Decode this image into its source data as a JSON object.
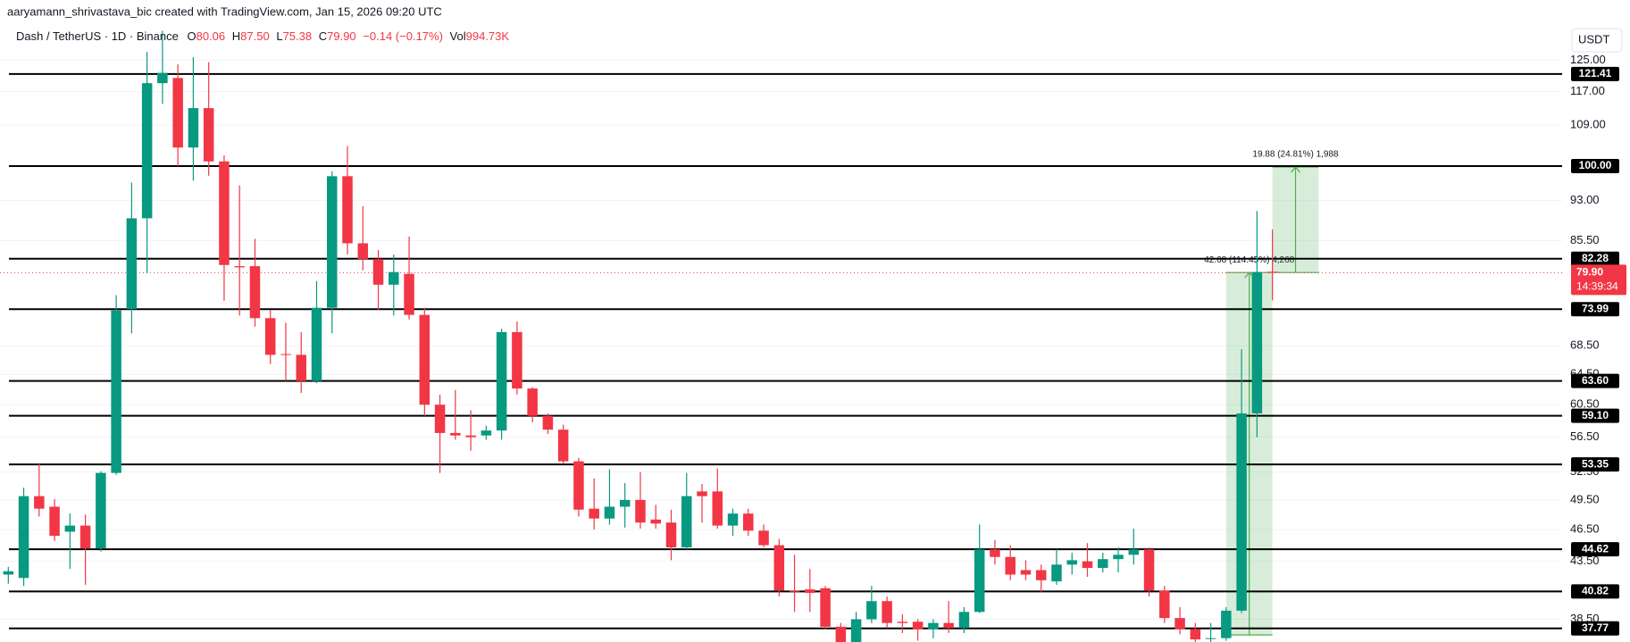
{
  "header": {
    "credit": "aaryamann_shrivastava_bic created with TradingView.com, Jan 15, 2026 09:20 UTC",
    "symbol": "Dash / TetherUS · 1D · Binance",
    "ohlc": [
      {
        "key": "O",
        "value": "80.06"
      },
      {
        "key": "H",
        "value": "87.50"
      },
      {
        "key": "L",
        "value": "75.38"
      },
      {
        "key": "C",
        "value": "79.90"
      }
    ],
    "change": "−0.14 (−0.17%)",
    "volume_key": "Vol",
    "volume": "994.73K",
    "currency": "USDT"
  },
  "chart_data": {
    "type": "candlestick",
    "log": true,
    "grid": true,
    "up_color": "#089981",
    "down_color": "#f23645",
    "ylim": [
      36.7,
      141.9
    ],
    "yticks": [
      {
        "value": 125,
        "label": "125.00"
      },
      {
        "value": 117,
        "label": "117.00"
      },
      {
        "value": 109,
        "label": "109.00"
      },
      {
        "value": 93,
        "label": "93.00"
      },
      {
        "value": 85.5,
        "label": "85.50"
      },
      {
        "value": 68.5,
        "label": "68.50"
      },
      {
        "value": 64.5,
        "label": "64.50"
      },
      {
        "value": 60.5,
        "label": "60.50"
      },
      {
        "value": 56.5,
        "label": "56.50"
      },
      {
        "value": 52.5,
        "label": "52.50"
      },
      {
        "value": 49.5,
        "label": "49.50"
      },
      {
        "value": 46.5,
        "label": "46.50"
      },
      {
        "value": 43.5,
        "label": "43.50"
      },
      {
        "value": 38.5,
        "label": "38.50"
      }
    ],
    "open": [
      42.3,
      42.0,
      49.9,
      48.8,
      46.3,
      46.9,
      44.7,
      52.4,
      74.0,
      89.6,
      119.1,
      120.4,
      104,
      113,
      101,
      81,
      81,
      72.6,
      67.3,
      67.2,
      63.6,
      74.2,
      97.9,
      85.0,
      82.2,
      77.9,
      79.7,
      73.1,
      60.5,
      57,
      56.7,
      56.7,
      57.3,
      70.5,
      62.6,
      59.1,
      57.4,
      53.7,
      48.6,
      47.6,
      48.8,
      49.5,
      47.5,
      47.2,
      44.8,
      50.4,
      50.4,
      46.9,
      48.1,
      46.4,
      45.0,
      40.9,
      41.0,
      41.1,
      37.9,
      36.6,
      38.5,
      40.0,
      38.3,
      38.3,
      37.7,
      38.2,
      37.8,
      39.1,
      44.6,
      43.9,
      42.7,
      42.7,
      41.7,
      43.2,
      43.5,
      42.9,
      43.7,
      44.1,
      44.6,
      40.9,
      38.6,
      37.7,
      37.0,
      37.0,
      39.2,
      59.4,
      80.06
    ],
    "high": [
      43,
      50.8,
      53.5,
      49.6,
      48.1,
      48.0,
      52.6,
      76.2,
      96.6,
      127.2,
      133,
      123.9,
      125.8,
      124.5,
      102.3,
      96,
      85.8,
      73.8,
      71.9,
      70.5,
      78.5,
      98.9,
      104.3,
      91.9,
      83.8,
      83,
      86.2,
      74.2,
      61.8,
      62.4,
      59.8,
      57.9,
      71.0,
      72.1,
      62.8,
      59.4,
      58,
      54.1,
      51.8,
      52.8,
      51.3,
      52.5,
      49.0,
      48.5,
      52.4,
      51.2,
      52.9,
      48.6,
      48.6,
      47.0,
      45.6,
      44.1,
      42.8,
      41.3,
      38.2,
      39.1,
      41.3,
      40.4,
      38.9,
      38.5,
      38.5,
      40.0,
      39.5,
      47.0,
      45.5,
      45.0,
      43.6,
      43.2,
      44.6,
      44.3,
      45.2,
      44.3,
      44.8,
      46.6,
      44.8,
      41.3,
      39.5,
      38.2,
      38.2,
      39.5,
      68.0,
      91.0,
      87.5
    ],
    "low": [
      41.5,
      41.3,
      47.8,
      45.4,
      42.8,
      41.4,
      44.4,
      52.2,
      70.3,
      79.8,
      114,
      100,
      97,
      98,
      75.3,
      73,
      71.3,
      65.9,
      63.6,
      62,
      63.3,
      70.3,
      83,
      80.3,
      73.9,
      73,
      72.4,
      59.1,
      52.4,
      56.2,
      54.9,
      56.2,
      56.2,
      61.8,
      58.3,
      56.9,
      53.4,
      47.8,
      46.5,
      47.0,
      46.7,
      46.6,
      46.6,
      43.6,
      44.6,
      47.2,
      46.6,
      45.9,
      45.9,
      44.8,
      40.4,
      39.1,
      39.1,
      37.7,
      36.2,
      36.4,
      38.2,
      37.8,
      37.4,
      36.8,
      37.0,
      37.4,
      37.4,
      39.0,
      43.2,
      41.8,
      41.8,
      40.8,
      41.4,
      42.3,
      42.1,
      42.5,
      42.5,
      43.2,
      40.4,
      38.2,
      37.3,
      36.5,
      36.5,
      36.8,
      39.0,
      56.5,
      75.38
    ],
    "close": [
      42.6,
      49.9,
      48.6,
      45.9,
      46.9,
      44.7,
      52.4,
      73.8,
      89.6,
      119.1,
      121.7,
      104.0,
      113,
      101,
      81.2,
      80.8,
      72.6,
      67.2,
      67.2,
      63.6,
      74.2,
      97.9,
      85.0,
      82.2,
      77.9,
      80,
      73.1,
      60.5,
      57.0,
      56.7,
      56.5,
      57.3,
      70.5,
      62.6,
      59.1,
      57.4,
      53.7,
      48.5,
      47.6,
      48.8,
      49.5,
      47.2,
      47.1,
      44.8,
      49.9,
      49.9,
      46.9,
      48.1,
      46.4,
      45.0,
      40.9,
      40.8,
      40.7,
      37.9,
      36.6,
      38.5,
      40.0,
      38.2,
      38.2,
      37.7,
      38.2,
      37.8,
      39.1,
      44.6,
      43.9,
      42.3,
      42.3,
      41.8,
      43.2,
      43.6,
      42.9,
      43.7,
      44.1,
      44.6,
      40.9,
      38.6,
      37.7,
      36.9,
      37.0,
      39.2,
      59.4,
      80.0,
      79.9
    ],
    "levels": [
      {
        "value": 121.41,
        "label": "121.41"
      },
      {
        "value": 100,
        "label": "100.00"
      },
      {
        "value": 82.28,
        "label": "82.28"
      },
      {
        "value": 73.99,
        "label": "73.99"
      },
      {
        "value": 63.6,
        "label": "63.60"
      },
      {
        "value": 59.1,
        "label": "59.10"
      },
      {
        "value": 53.35,
        "label": "53.35"
      },
      {
        "value": 44.62,
        "label": "44.62"
      },
      {
        "value": 40.82,
        "label": "40.82"
      },
      {
        "value": 37.77,
        "label": "37.77"
      }
    ],
    "level_color": "#000000",
    "last_price": {
      "value": 79.9,
      "label": "79.90"
    },
    "countdown": "14:39:34",
    "measures": [
      {
        "from": 37.25,
        "to": 79.93,
        "start_bar": 79,
        "end_bar": 82,
        "label": "42.68 (114.45%) 4,268"
      },
      {
        "from": 79.93,
        "to": 99.81,
        "start_bar": 82,
        "end_bar": 85,
        "label": "19.88 (24.81%) 1,988"
      }
    ],
    "measure_color": "#4caf50"
  }
}
